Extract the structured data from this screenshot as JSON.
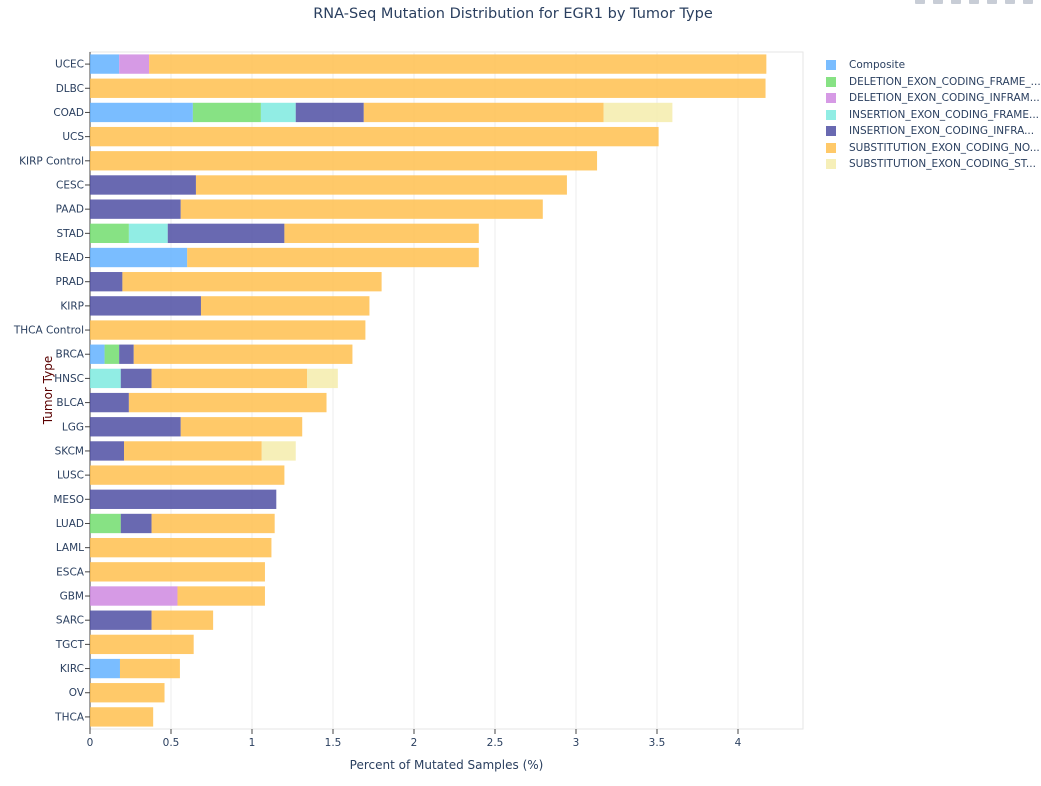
{
  "chart_data": {
    "type": "bar",
    "orientation": "horizontal",
    "barmode": "stack",
    "title": "RNA-Seq Mutation Distribution for EGR1 by Tumor Type",
    "xlabel": "Percent of Mutated Samples (%)",
    "ylabel": "Tumor Type",
    "xlim": [
      0,
      4.4
    ],
    "xticks": [
      "0",
      "0.5",
      "1",
      "1.5",
      "2",
      "2.5",
      "3",
      "3.5",
      "4"
    ],
    "grid": true,
    "legend_position": "right",
    "categories": [
      "UCEC",
      "DLBC",
      "COAD",
      "UCS",
      "KIRP Control",
      "CESC",
      "PAAD",
      "STAD",
      "READ",
      "PRAD",
      "KIRP",
      "THCA Control",
      "BRCA",
      "HNSC",
      "BLCA",
      "LGG",
      "SKCM",
      "LUSC",
      "MESO",
      "LUAD",
      "LAML",
      "ESCA",
      "GBM",
      "SARC",
      "TGCT",
      "KIRC",
      "OV",
      "THCA"
    ],
    "series": [
      {
        "name": "Composite",
        "color": "#63b1ff",
        "values": [
          0.18,
          0,
          0.635,
          0,
          0,
          0,
          0,
          0,
          0.6,
          0,
          0,
          0,
          0.09,
          0,
          0,
          0,
          0,
          0,
          0,
          0,
          0,
          0,
          0,
          0,
          0,
          0.185,
          0,
          0
        ]
      },
      {
        "name": "DELETION_EXON_CODING_FRAME_...",
        "color": "#72dd6f",
        "values": [
          0,
          0,
          0.42,
          0,
          0,
          0,
          0,
          0.24,
          0,
          0,
          0,
          0,
          0.09,
          0,
          0,
          0,
          0,
          0,
          0,
          0.19,
          0,
          0,
          0,
          0,
          0,
          0,
          0,
          0
        ]
      },
      {
        "name": "DELETION_EXON_CODING_INFRAM...",
        "color": "#cf88e0",
        "values": [
          0.185,
          0,
          0,
          0,
          0,
          0,
          0,
          0,
          0,
          0,
          0,
          0,
          0,
          0,
          0,
          0,
          0,
          0,
          0,
          0,
          0,
          0,
          0.54,
          0,
          0,
          0,
          0,
          0
        ]
      },
      {
        "name": "INSERTION_EXON_CODING_FRAME...",
        "color": "#7eeadf",
        "values": [
          0,
          0,
          0.215,
          0,
          0,
          0,
          0,
          0.24,
          0,
          0,
          0,
          0,
          0,
          0.19,
          0,
          0,
          0,
          0,
          0,
          0,
          0,
          0,
          0,
          0,
          0,
          0,
          0,
          0
        ]
      },
      {
        "name": "INSERTION_EXON_CODING_INFRA...",
        "color": "#4f4fa3",
        "values": [
          0,
          0,
          0.42,
          0,
          0,
          0.654,
          0.56,
          0.72,
          0,
          0.2,
          0.685,
          0,
          0.09,
          0.19,
          0.24,
          0.56,
          0.21,
          0,
          1.15,
          0.19,
          0,
          0,
          0,
          0.38,
          0,
          0,
          0,
          0
        ]
      },
      {
        "name": "SUBSTITUTION_EXON_CODING_NO...",
        "color": "#ffbf4f",
        "values": [
          3.81,
          4.17,
          1.48,
          3.51,
          3.13,
          2.29,
          2.235,
          1.2,
          1.8,
          1.6,
          1.04,
          1.7,
          1.35,
          0.96,
          1.22,
          0.75,
          0.85,
          1.2,
          0,
          0.76,
          1.12,
          1.08,
          0.54,
          0.38,
          0.64,
          0.37,
          0.46,
          0.39
        ]
      },
      {
        "name": "SUBSTITUTION_EXON_CODING_ST...",
        "color": "#f5ecab",
        "values": [
          0,
          0,
          0.425,
          0,
          0,
          0,
          0,
          0,
          0,
          0,
          0,
          0,
          0,
          0.19,
          0,
          0,
          0.21,
          0,
          0,
          0,
          0,
          0,
          0,
          0,
          0,
          0,
          0,
          0
        ]
      }
    ]
  }
}
